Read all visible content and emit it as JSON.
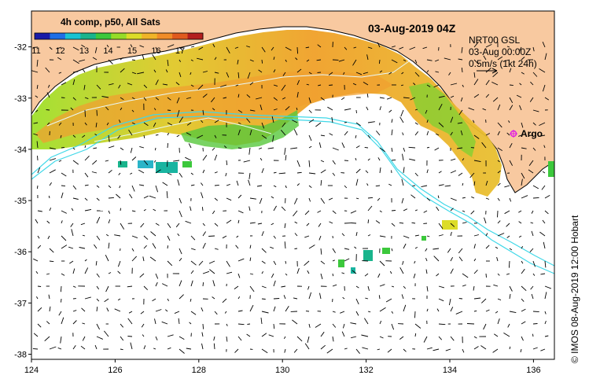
{
  "legend": {
    "title": "4h comp, p50, All Sats",
    "ticks": [
      "11",
      "12",
      "13",
      "14",
      "15",
      "16",
      "17"
    ],
    "colors": [
      "#1a1aa8",
      "#1e6ee6",
      "#19c3d2",
      "#19b48c",
      "#3cc83c",
      "#96dc28",
      "#dcdc28",
      "#f0b428",
      "#f08c28",
      "#e05a1e",
      "#b41e1e"
    ]
  },
  "header": {
    "date_title": "03-Aug-2019 04Z",
    "source": "NRT00 GSL",
    "time": "03-Aug 00:00Z",
    "scale": "0.5m/s (1kt 24h)"
  },
  "marker": {
    "label": "Argo",
    "color": "#e020e0"
  },
  "axes": {
    "x_ticks": [
      "124",
      "126",
      "128",
      "130",
      "132",
      "134",
      "136"
    ],
    "y_ticks": [
      "-32",
      "-33",
      "-34",
      "-35",
      "-36",
      "-37",
      "-38"
    ],
    "lon_range": [
      124,
      136.5
    ],
    "lat_range": [
      -38.1,
      -31.3
    ]
  },
  "credit": "© IMOS 08-Aug-2019 12:00 Hobart",
  "colors": {
    "land": "#f8c9a0",
    "coast": "#000000",
    "isobath": "#40d8e8"
  }
}
